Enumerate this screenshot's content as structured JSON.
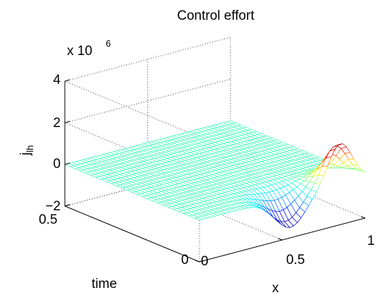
{
  "chart_data": {
    "type": "surface",
    "title": "Control effort",
    "zlabel_main": "j",
    "zlabel_sub": "lh",
    "exponent": {
      "base": "x 10",
      "power": "6"
    },
    "xlabel": "x",
    "ylabel": "time",
    "x_ticks": [
      "0",
      "0.5",
      "1"
    ],
    "y_ticks": [
      "0",
      "0.5"
    ],
    "z_ticks": [
      "−2",
      "0",
      "2",
      "4"
    ],
    "xlim": [
      0,
      1
    ],
    "ylim": [
      0,
      0.5
    ],
    "zlim": [
      -2,
      4
    ],
    "z_scale": 1000000,
    "grid": true,
    "colormap": "jet",
    "surface_summary": {
      "peak": {
        "x": 0.85,
        "time": 0,
        "value": 1.9
      },
      "trough": {
        "x": 0.55,
        "time": 0,
        "value": -1.5
      },
      "flat_value_for_time_above": 0.1
    }
  }
}
